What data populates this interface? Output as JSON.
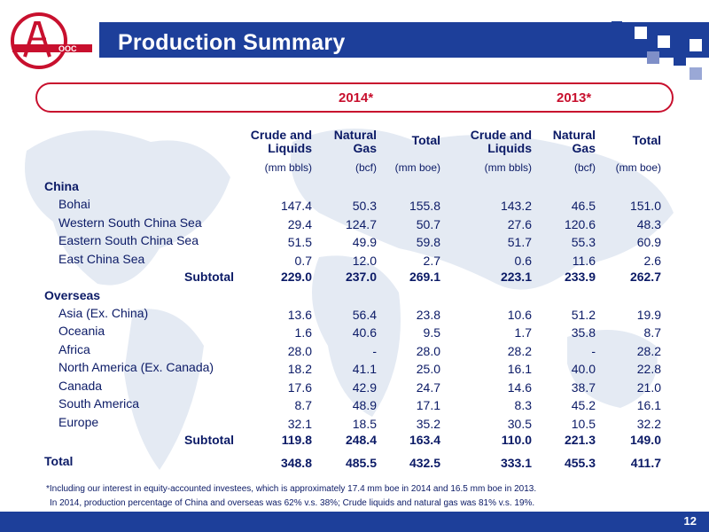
{
  "title": "Production Summary",
  "page_number": "12",
  "years": [
    "2014*",
    "2013*"
  ],
  "columns": [
    {
      "head1": "Crude and",
      "head2": "Liquids",
      "unit": "(mm bbls)"
    },
    {
      "head1": "Natural",
      "head2": "Gas",
      "unit": "(bcf)"
    },
    {
      "head1": "Total",
      "head2": "",
      "unit": "(mm boe)"
    },
    {
      "head1": "Crude and",
      "head2": "Liquids",
      "unit": "(mm bbls)"
    },
    {
      "head1": "Natural",
      "head2": "Gas",
      "unit": "(bcf)"
    },
    {
      "head1": "Total",
      "head2": "",
      "unit": "(mm boe)"
    }
  ],
  "sections": [
    {
      "name": "China",
      "rows": [
        {
          "label": "Bohai",
          "values": [
            "147.4",
            "50.3",
            "155.8",
            "143.2",
            "46.5",
            "151.0"
          ]
        },
        {
          "label": "Western South China Sea",
          "values": [
            "29.4",
            "124.7",
            "50.7",
            "27.6",
            "120.6",
            "48.3"
          ]
        },
        {
          "label": "Eastern South China Sea",
          "values": [
            "51.5",
            "49.9",
            "59.8",
            "51.7",
            "55.3",
            "60.9"
          ]
        },
        {
          "label": "East China Sea",
          "values": [
            "0.7",
            "12.0",
            "2.7",
            "0.6",
            "11.6",
            "2.6"
          ]
        }
      ],
      "subtotal": {
        "label": "Subtotal",
        "values": [
          "229.0",
          "237.0",
          "269.1",
          "223.1",
          "233.9",
          "262.7"
        ]
      }
    },
    {
      "name": "Overseas",
      "rows": [
        {
          "label": "Asia (Ex. China)",
          "values": [
            "13.6",
            "56.4",
            "23.8",
            "10.6",
            "51.2",
            "19.9"
          ]
        },
        {
          "label": "Oceania",
          "values": [
            "1.6",
            "40.6",
            "9.5",
            "1.7",
            "35.8",
            "8.7"
          ]
        },
        {
          "label": "Africa",
          "values": [
            "28.0",
            "-",
            "28.0",
            "28.2",
            "-",
            "28.2"
          ]
        },
        {
          "label": "North America (Ex. Canada)",
          "values": [
            "18.2",
            "41.1",
            "25.0",
            "16.1",
            "40.0",
            "22.8"
          ]
        },
        {
          "label": "Canada",
          "values": [
            "17.6",
            "42.9",
            "24.7",
            "14.6",
            "38.7",
            "21.0"
          ]
        },
        {
          "label": "South America",
          "values": [
            "8.7",
            "48.9",
            "17.1",
            "8.3",
            "45.2",
            "16.1"
          ]
        },
        {
          "label": "Europe",
          "values": [
            "32.1",
            "18.5",
            "35.2",
            "30.5",
            "10.5",
            "32.2"
          ]
        }
      ],
      "subtotal": {
        "label": "Subtotal",
        "values": [
          "119.8",
          "248.4",
          "163.4",
          "110.0",
          "221.3",
          "149.0"
        ]
      }
    }
  ],
  "total": {
    "label": "Total",
    "values": [
      "348.8",
      "485.5",
      "432.5",
      "333.1",
      "455.3",
      "411.7"
    ]
  },
  "footnotes": [
    "*Including our interest in equity-accounted investees, which is approximately 17.4 mm boe in 2014 and 16.5 mm boe in 2013.",
    "In 2014, production percentage of China and overseas was 62% v.s. 38%; Crude liquids and natural gas was 81% v.s. 19%."
  ],
  "colors": {
    "accent_red": "#c8102e",
    "brand_blue": "#1d3f9a",
    "text_navy": "#0b1a66"
  },
  "logo_icon": "cnooc-logo-icon"
}
